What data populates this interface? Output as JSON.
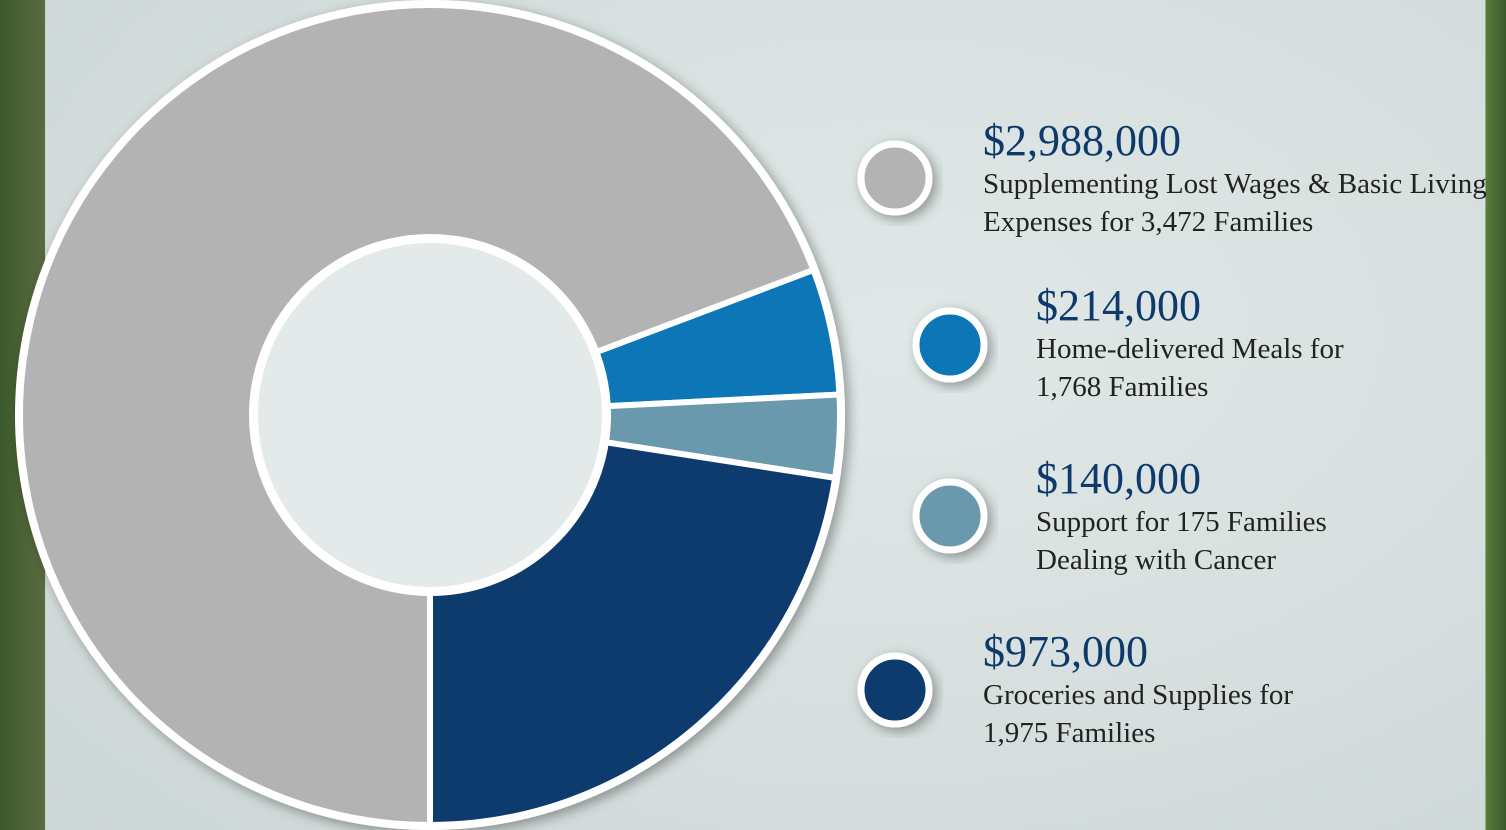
{
  "chart_data": {
    "type": "pie",
    "categories": [
      "Supplementing Lost Wages & Basic Living Expenses for 3,472 Families",
      "Home-delivered Meals for 1,768 Families",
      "Support for 175 Families Dealing with Cancer",
      "Groceries and Supplies for 1,975 Families"
    ],
    "values": [
      2988000,
      214000,
      140000,
      973000
    ],
    "value_labels": [
      "$2,988,000",
      "$214,000",
      "$140,000",
      "$973,000"
    ],
    "colors": [
      "#b3b3b3",
      "#0a76b6",
      "#6a98ad",
      "#0b3a6e"
    ]
  }
}
